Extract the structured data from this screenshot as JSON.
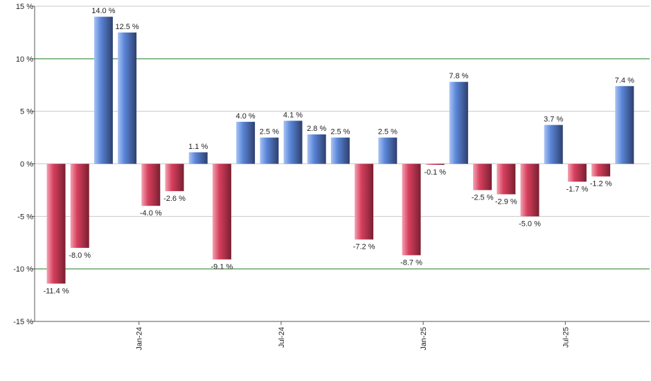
{
  "chart_data": {
    "type": "bar",
    "title": "",
    "xlabel": "",
    "ylabel": "",
    "ylim": [
      -15,
      15
    ],
    "y_ticks": [
      15,
      10,
      5,
      0,
      -5,
      -10,
      -15
    ],
    "y_tick_labels": [
      "15 %",
      "10 %",
      "5 %",
      "0 %",
      "-5 %",
      "-10 %",
      "-15 %"
    ],
    "y_reference_lines": [
      10,
      -10
    ],
    "grid": true,
    "legend": "none",
    "x_tick_labels": [
      {
        "label": "Jan-24",
        "after_bar": 3
      },
      {
        "label": "Jul-24",
        "after_bar": 9
      },
      {
        "label": "Jan-25",
        "after_bar": 15
      },
      {
        "label": "Jul-25",
        "after_bar": 21
      }
    ],
    "values": [
      -11.4,
      -8.0,
      14.0,
      12.5,
      -4.0,
      -2.6,
      1.1,
      -9.1,
      4.0,
      2.5,
      4.1,
      2.8,
      2.5,
      -7.2,
      2.5,
      -8.7,
      -0.1,
      7.8,
      -2.5,
      -2.9,
      -5.0,
      3.7,
      -1.7,
      -1.2,
      7.4
    ],
    "data_labels": [
      "-11.4 %",
      "-8.0 %",
      "14.0 %",
      "12.5 %",
      "-4.0 %",
      "-2.6 %",
      "1.1 %",
      "-9.1 %",
      "4.0 %",
      "2.5 %",
      "4.1 %",
      "2.8 %",
      "2.5 %",
      "-7.2 %",
      "2.5 %",
      "-8.7 %",
      "-0.1 %",
      "7.8 %",
      "-2.5 %",
      "-2.9 %",
      "-5.0 %",
      "3.7 %",
      "-1.7 %",
      "-1.2 %",
      "7.4 %"
    ],
    "colors": {
      "positive_light": "#a9c4f5",
      "positive_mid": "#5b86d8",
      "positive_dark": "#2d3f6e",
      "negative_light": "#f3a3b1",
      "negative_mid": "#d8405f",
      "negative_dark": "#7a1f30",
      "grid": "#c8c8c8",
      "reference_line": "#1a7a1a",
      "axis": "#555555"
    }
  }
}
